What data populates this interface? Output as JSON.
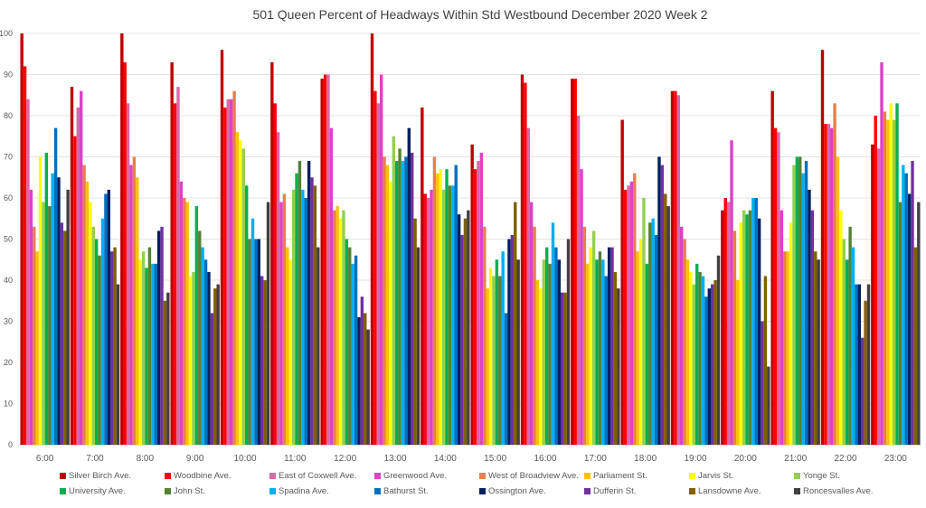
{
  "chart_data": {
    "type": "bar",
    "title": "501 Queen  Percent of Headways Within Std Westbound December 2020 Week 2",
    "xlabel": "",
    "ylabel": "",
    "ylim": [
      0,
      100
    ],
    "yticks": [
      "0",
      "10",
      "20",
      "30",
      "40",
      "50",
      "60",
      "70",
      "80",
      "90",
      "100"
    ],
    "grid": true,
    "legend_position": "bottom",
    "categories": [
      "6:00",
      "7:00",
      "8:00",
      "9:00",
      "10:00",
      "11:00",
      "12:00",
      "13:00",
      "14:00",
      "15:00",
      "16:00",
      "17:00",
      "18:00",
      "19:00",
      "20:00",
      "21:00",
      "22:00",
      "23:00"
    ],
    "series": [
      {
        "name": "Silver Birch Ave.",
        "color": "#C00000",
        "values": [
          100,
          87,
          100,
          93,
          96,
          93,
          89,
          100,
          82,
          73,
          90,
          89,
          79,
          86,
          57,
          86,
          96,
          73
        ]
      },
      {
        "name": "Woodbine Ave.",
        "color": "#FF0000",
        "values": [
          92,
          75,
          93,
          83,
          82,
          83,
          90,
          86,
          61,
          67,
          88,
          89,
          62,
          86,
          60,
          77,
          78,
          80
        ]
      },
      {
        "name": "East of Coxwell Ave.",
        "color": "#D86AA8",
        "values": [
          84,
          82,
          83,
          87,
          84,
          76,
          90,
          83,
          60,
          69,
          77,
          80,
          63,
          85,
          59,
          76,
          78,
          72
        ]
      },
      {
        "name": "Greenwood Ave.",
        "color": "#E040C8",
        "values": [
          62,
          86,
          68,
          64,
          84,
          59,
          77,
          90,
          62,
          71,
          59,
          67,
          64,
          53,
          74,
          57,
          77,
          93
        ]
      },
      {
        "name": "West of Broadview Ave.",
        "color": "#E8804A",
        "values": [
          53,
          68,
          70,
          60,
          86,
          61,
          57,
          70,
          70,
          53,
          53,
          53,
          66,
          50,
          52,
          47,
          83,
          81
        ]
      },
      {
        "name": "Parliament St.",
        "color": "#FFC000",
        "values": [
          47,
          64,
          65,
          59,
          76,
          48,
          58,
          68,
          66,
          38,
          40,
          44,
          47,
          45,
          40,
          47,
          70,
          79
        ]
      },
      {
        "name": "Jarvis St.",
        "color": "#FFFF00",
        "values": [
          70,
          59,
          45,
          41,
          74,
          45,
          55,
          64,
          67,
          43,
          38,
          48,
          50,
          42,
          54,
          54,
          57,
          83
        ]
      },
      {
        "name": "Yonge St.",
        "color": "#92D050",
        "values": [
          59,
          53,
          47,
          42,
          72,
          62,
          57,
          75,
          62,
          41,
          45,
          52,
          60,
          39,
          57,
          68,
          50,
          79
        ]
      },
      {
        "name": "University Ave.",
        "color": "#00B050",
        "values": [
          71,
          50,
          43,
          58,
          63,
          66,
          50,
          69,
          67,
          45,
          48,
          45,
          44,
          44,
          56,
          70,
          45,
          83
        ]
      },
      {
        "name": "John St.",
        "color": "#548235",
        "values": [
          58,
          46,
          48,
          52,
          50,
          69,
          48,
          72,
          63,
          41,
          44,
          47,
          54,
          42,
          57,
          70,
          53,
          59
        ]
      },
      {
        "name": "Spadina Ave.",
        "color": "#00B0F0",
        "values": [
          66,
          55,
          44,
          48,
          55,
          62,
          44,
          69,
          63,
          47,
          54,
          45,
          55,
          41,
          60,
          66,
          48,
          68
        ]
      },
      {
        "name": "Bathurst St.",
        "color": "#0070C0",
        "values": [
          77,
          61,
          44,
          45,
          50,
          60,
          46,
          70,
          68,
          32,
          48,
          41,
          51,
          36,
          60,
          69,
          39,
          66
        ]
      },
      {
        "name": "Ossington Ave.",
        "color": "#002060",
        "values": [
          65,
          62,
          52,
          42,
          50,
          69,
          31,
          77,
          56,
          50,
          45,
          48,
          70,
          38,
          55,
          62,
          39,
          61
        ]
      },
      {
        "name": "Dufferin St.",
        "color": "#7030A0",
        "values": [
          54,
          47,
          53,
          32,
          41,
          65,
          36,
          71,
          51,
          51,
          37,
          48,
          68,
          39,
          30,
          57,
          26,
          69
        ]
      },
      {
        "name": "Lansdowne Ave.",
        "color": "#7F6000",
        "values": [
          52,
          48,
          35,
          38,
          40,
          63,
          32,
          55,
          55,
          59,
          37,
          42,
          61,
          40,
          41,
          47,
          35,
          48
        ]
      },
      {
        "name": "Roncesvalles Ave.",
        "color": "#404040",
        "values": [
          62,
          39,
          37,
          39,
          59,
          48,
          28,
          48,
          57,
          45,
          50,
          38,
          58,
          46,
          19,
          45,
          39,
          59
        ]
      }
    ]
  }
}
